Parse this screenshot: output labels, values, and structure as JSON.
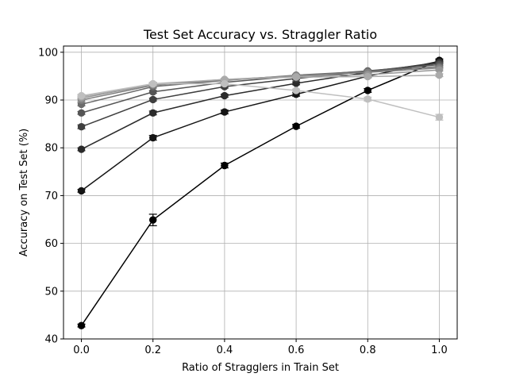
{
  "chart_data": {
    "type": "line",
    "title": "Test Set Accuracy vs. Straggler Ratio",
    "xlabel": "Ratio of Stragglers in Train Set",
    "ylabel": "Accuracy on Test Set (%)",
    "xlim": [
      -0.05,
      1.05
    ],
    "ylim": [
      40,
      101.3
    ],
    "xticks": [
      0.0,
      0.2,
      0.4,
      0.6,
      0.8,
      1.0
    ],
    "xtick_labels": [
      "0.0",
      "0.2",
      "0.4",
      "0.6",
      "0.8",
      "1.0"
    ],
    "yticks": [
      40,
      50,
      60,
      70,
      80,
      90,
      100
    ],
    "ytick_labels": [
      "40",
      "50",
      "60",
      "70",
      "80",
      "90",
      "100"
    ],
    "grid": true,
    "x": [
      0.0,
      0.2,
      0.4,
      0.6,
      0.8,
      1.0
    ],
    "series": [
      {
        "color": "#000000",
        "values": [
          42.8,
          64.9,
          76.3,
          84.5,
          92.0,
          98.3
        ],
        "errors": [
          0.3,
          1.2,
          0.5,
          0.4,
          0.4,
          0.3
        ]
      },
      {
        "color": "#151515",
        "values": [
          71.0,
          82.1,
          87.5,
          91.2,
          95.0,
          98.1
        ],
        "errors": [
          0.3,
          0.5,
          0.4,
          0.4,
          0.3,
          0.2
        ]
      },
      {
        "color": "#2b2b2b",
        "values": [
          79.7,
          87.3,
          90.9,
          93.5,
          95.8,
          97.9
        ],
        "errors": [
          0.3,
          0.4,
          0.3,
          0.3,
          0.2,
          0.2
        ]
      },
      {
        "color": "#3f3f3f",
        "values": [
          84.4,
          90.1,
          92.8,
          94.5,
          96.0,
          97.7
        ],
        "errors": [
          0.4,
          0.3,
          0.3,
          0.3,
          0.2,
          0.2
        ]
      },
      {
        "color": "#555555",
        "values": [
          87.3,
          91.7,
          93.7,
          95.0,
          96.1,
          97.4
        ],
        "errors": [
          0.3,
          0.3,
          0.3,
          0.2,
          0.2,
          0.2
        ]
      },
      {
        "color": "#6b6b6b",
        "values": [
          89.1,
          92.8,
          94.1,
          95.2,
          96.0,
          97.0
        ],
        "errors": [
          0.3,
          0.3,
          0.2,
          0.2,
          0.2,
          0.2
        ]
      },
      {
        "color": "#808080",
        "values": [
          90.0,
          93.1,
          94.2,
          95.1,
          95.8,
          96.7
        ],
        "errors": [
          0.3,
          0.3,
          0.2,
          0.2,
          0.2,
          0.2
        ]
      },
      {
        "color": "#969696",
        "values": [
          90.4,
          93.3,
          94.3,
          95.0,
          95.3,
          96.3
        ],
        "errors": [
          0.3,
          0.3,
          0.2,
          0.2,
          0.2,
          0.2
        ]
      },
      {
        "color": "#aaaaaa",
        "values": [
          90.7,
          93.4,
          94.3,
          94.8,
          94.9,
          95.2
        ],
        "errors": [
          0.3,
          0.3,
          0.2,
          0.2,
          0.3,
          0.3
        ]
      },
      {
        "color": "#bfbfbf",
        "values": [
          90.9,
          93.4,
          93.4,
          92.0,
          90.2,
          86.4
        ],
        "errors": [
          0.3,
          0.3,
          0.3,
          0.3,
          0.4,
          0.6
        ]
      }
    ]
  }
}
